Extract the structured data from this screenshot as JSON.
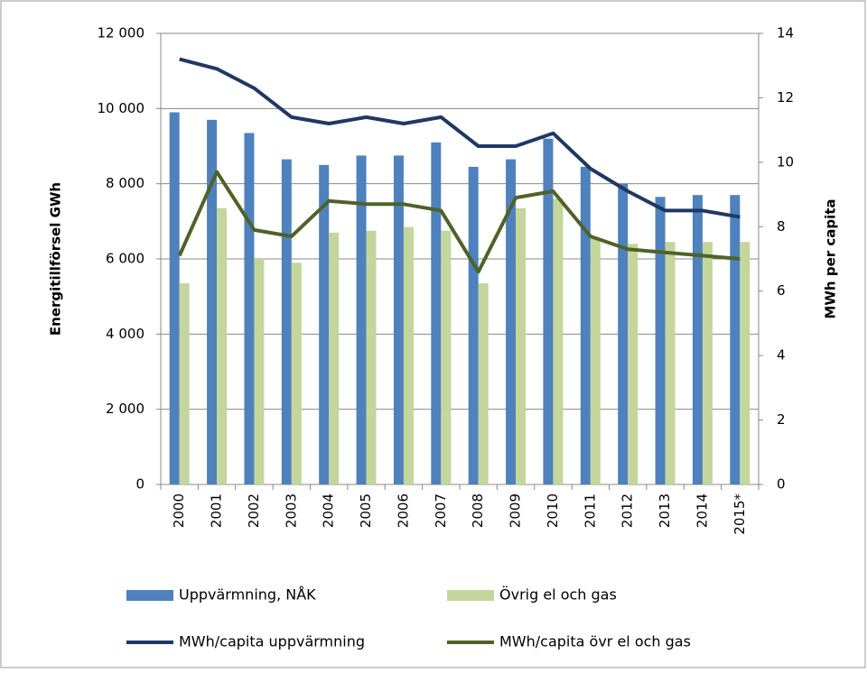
{
  "chart_data": {
    "type": "bar-line",
    "categories": [
      "2000",
      "2001",
      "2002",
      "2003",
      "2004",
      "2005",
      "2006",
      "2007",
      "2008",
      "2009",
      "2010",
      "2011",
      "2012",
      "2013",
      "2014",
      "2015*"
    ],
    "ylabel": "Energitillförsel GWh",
    "y2label": "MWh per capita",
    "ylim": [
      0,
      12000
    ],
    "yticks": [
      {
        "value": 0,
        "label": "0"
      },
      {
        "value": 2000,
        "label": "2 000"
      },
      {
        "value": 4000,
        "label": "4 000"
      },
      {
        "value": 6000,
        "label": "6 000"
      },
      {
        "value": 8000,
        "label": "8 000"
      },
      {
        "value": 10000,
        "label": "10 000"
      },
      {
        "value": 12000,
        "label": "12 000"
      }
    ],
    "y2lim": [
      0,
      14
    ],
    "y2ticks": [
      0,
      2,
      4,
      6,
      8,
      10,
      12,
      14
    ],
    "grid": true,
    "series": [
      {
        "name": "Uppvärmning, NÅK",
        "type": "bar",
        "color": "#4f81bd",
        "values": [
          9900,
          9700,
          9350,
          8650,
          8500,
          8750,
          8750,
          9100,
          8450,
          8650,
          9200,
          8450,
          8000,
          7650,
          7700,
          7700
        ]
      },
      {
        "name": "Övrig el och gas",
        "type": "bar",
        "color": "#c3d69b",
        "values": [
          5350,
          7350,
          6000,
          5900,
          6700,
          6750,
          6850,
          6750,
          5350,
          7350,
          7600,
          6550,
          6400,
          6450,
          6450,
          6450
        ]
      },
      {
        "name": "MWh/capita uppvärmning",
        "type": "line",
        "axis": "y2",
        "color": "#1f3864",
        "values": [
          13.2,
          12.9,
          12.3,
          11.4,
          11.2,
          11.4,
          11.2,
          11.4,
          10.5,
          10.5,
          10.9,
          9.8,
          9.1,
          8.5,
          8.5,
          8.3
        ]
      },
      {
        "name": "MWh/capita övr el och gas",
        "type": "line",
        "axis": "y2",
        "color": "#4f6228",
        "values": [
          7.1,
          9.7,
          7.9,
          7.7,
          8.8,
          8.7,
          8.7,
          8.5,
          6.6,
          8.9,
          9.1,
          7.7,
          7.3,
          7.2,
          7.1,
          7.0
        ]
      }
    ]
  }
}
